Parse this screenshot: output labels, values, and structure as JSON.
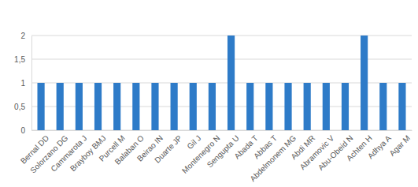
{
  "chart_data": {
    "type": "bar",
    "categories": [
      "Bernal DD",
      "Solorzano DG",
      "Cammarota J",
      "Brayboy BMJ",
      "Purcell M",
      "Balaban O",
      "Beirao IN",
      "Duarte JP",
      "Gil J",
      "Montenegro N",
      "Sengupta U",
      "Abada T",
      "Abbas T",
      "Abdelmonem MG",
      "Abdi MR",
      "Abramovic V",
      "Abu-Obeid N",
      "Achten H",
      "Adhya A",
      "Agar M"
    ],
    "values": [
      1,
      1,
      1,
      1,
      1,
      1,
      1,
      1,
      1,
      1,
      2,
      1,
      1,
      1,
      1,
      1,
      1,
      2,
      1,
      1
    ],
    "color": "#2e7bc8",
    "ylim": [
      0,
      2
    ],
    "yticks": [
      0,
      {
        "value": 0.5,
        "label": "0,5"
      },
      1,
      {
        "value": 1.5,
        "label": "1,5"
      },
      2
    ],
    "grid": true
  }
}
